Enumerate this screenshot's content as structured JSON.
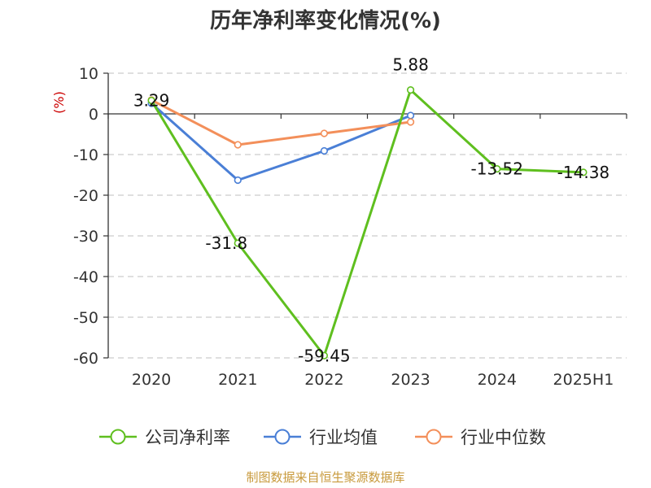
{
  "chart_data": {
    "type": "line",
    "title": "历年净利率变化情况(%)",
    "ylabel": "(%)",
    "xlabel": "",
    "categories": [
      "2020",
      "2021",
      "2022",
      "2023",
      "2024",
      "2025H1"
    ],
    "ylim": [
      -60,
      10
    ],
    "yticks": [
      10,
      0,
      -10,
      -20,
      -30,
      -40,
      -50,
      -60
    ],
    "grid": true,
    "legend_position": "bottom",
    "series": [
      {
        "name": "公司净利率",
        "color": "#5fbf1f",
        "values": [
          3.29,
          -31.8,
          -59.45,
          5.88,
          -13.52,
          -14.38
        ],
        "labels": [
          "3.29",
          "-31.8",
          "-59.45",
          "5.88",
          "-13.52",
          "-14.38"
        ]
      },
      {
        "name": "行业均值",
        "color": "#4a7fd6",
        "values": [
          2.6,
          -16.3,
          -9.1,
          -0.4,
          null,
          null
        ]
      },
      {
        "name": "行业中位数",
        "color": "#f38f5a",
        "values": [
          3.4,
          -7.6,
          -4.8,
          -2.0,
          null,
          null
        ]
      }
    ]
  },
  "source": "制图数据来自恒生聚源数据库",
  "colors": {
    "axis": "#333333",
    "grid": "#cccccc",
    "ylabel": "#cc0000",
    "source": "#c89a3c"
  }
}
